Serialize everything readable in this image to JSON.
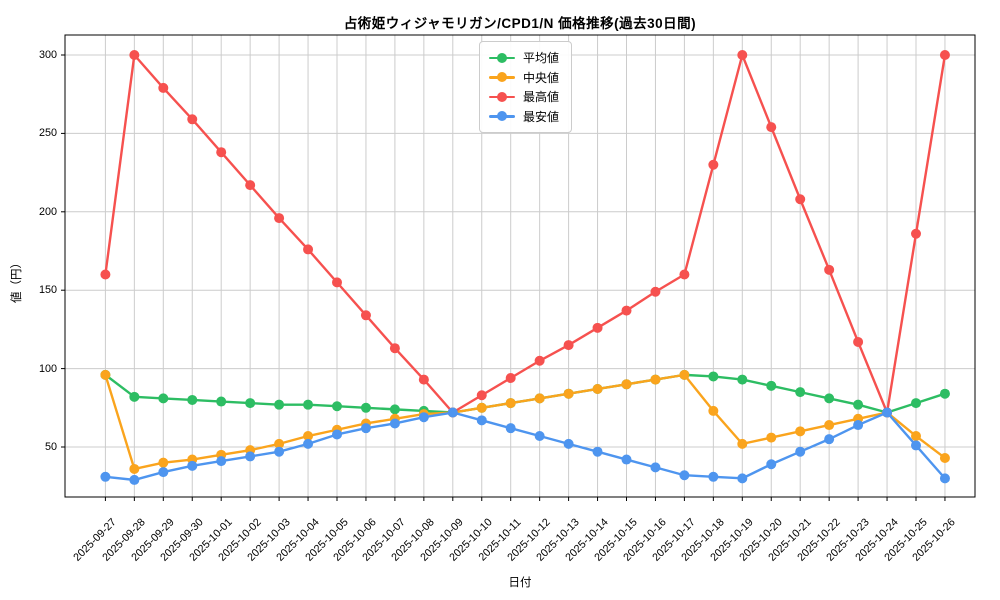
{
  "chart_data": {
    "type": "line",
    "title": "占術姫ウィジャモリガン/CPD1/N 価格推移(過去30日間)",
    "xlabel": "日付",
    "ylabel": "値（円）",
    "categories": [
      "2025-09-27",
      "2025-09-28",
      "2025-09-29",
      "2025-09-30",
      "2025-10-01",
      "2025-10-02",
      "2025-10-03",
      "2025-10-04",
      "2025-10-05",
      "2025-10-06",
      "2025-10-07",
      "2025-10-08",
      "2025-10-09",
      "2025-10-10",
      "2025-10-11",
      "2025-10-12",
      "2025-10-13",
      "2025-10-14",
      "2025-10-15",
      "2025-10-16",
      "2025-10-17",
      "2025-10-18",
      "2025-10-19",
      "2025-10-20",
      "2025-10-21",
      "2025-10-22",
      "2025-10-23",
      "2025-10-24",
      "2025-10-25",
      "2025-10-26"
    ],
    "series": [
      {
        "key": "average",
        "name": "平均値",
        "color": "#2dbd63",
        "values": [
          96,
          82,
          81,
          80,
          79,
          78,
          77,
          77,
          76,
          75,
          74,
          73,
          72,
          75,
          78,
          81,
          84,
          87,
          90,
          93,
          96,
          95,
          93,
          89,
          85,
          81,
          77,
          72,
          78,
          84
        ]
      },
      {
        "key": "median",
        "name": "中央値",
        "color": "#faa41d",
        "values": [
          96,
          36,
          40,
          42,
          45,
          48,
          52,
          57,
          61,
          65,
          68,
          71,
          72,
          75,
          78,
          81,
          84,
          87,
          90,
          93,
          96,
          73,
          52,
          56,
          60,
          64,
          68,
          72,
          57,
          43
        ]
      },
      {
        "key": "highest",
        "name": "最高値",
        "color": "#f6514f",
        "values": [
          160,
          300,
          279,
          259,
          238,
          217,
          196,
          176,
          155,
          134,
          113,
          93,
          72,
          83,
          94,
          105,
          115,
          126,
          137,
          149,
          160,
          230,
          300,
          254,
          208,
          163,
          117,
          72,
          186,
          300
        ]
      },
      {
        "key": "lowest",
        "name": "最安値",
        "color": "#4e95ef",
        "values": [
          31,
          29,
          34,
          38,
          41,
          44,
          47,
          52,
          58,
          62,
          65,
          69,
          72,
          67,
          62,
          57,
          52,
          47,
          42,
          37,
          32,
          31,
          30,
          39,
          47,
          55,
          64,
          72,
          51,
          30
        ]
      }
    ],
    "yticks": [
      50,
      100,
      150,
      200,
      250,
      300
    ],
    "ylim": [
      18,
      313
    ],
    "xtick_rotation": 45,
    "grid": true,
    "grid_color": "#cccccc",
    "axis_color": "#000000",
    "background_color": "#ffffff",
    "legend_position": "upper center",
    "marker": "circle"
  }
}
